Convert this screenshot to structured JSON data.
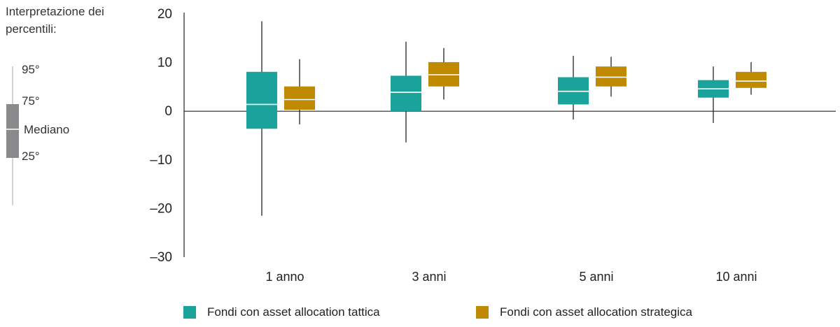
{
  "key": {
    "title": "Interpretazione dei percentili:",
    "labels": {
      "p95": "95°",
      "p75": "75°",
      "median": "Mediano",
      "p25": "25°"
    }
  },
  "legend": {
    "tactical": "Fondi con asset allocation tattica",
    "strategic": "Fondi con asset allocation strategica"
  },
  "colors": {
    "tactical": "#1aa39a",
    "strategic": "#c08a00",
    "key_box": "#8a8a8d",
    "axis": "#222222"
  },
  "chart_data": {
    "type": "box",
    "categories": [
      "1 anno",
      "3 anni",
      "5 anni",
      "10 anni"
    ],
    "ylim": [
      -30,
      20
    ],
    "yticks": [
      20,
      10,
      0,
      -10,
      -20,
      -30
    ],
    "ytick_labels": [
      "20",
      "10",
      "0",
      "–10",
      "–20",
      "–30"
    ],
    "series": [
      {
        "name": "Fondi con asset allocation tattica",
        "color": "#1aa39a",
        "boxes": [
          {
            "whisker_low": -21.5,
            "q1": -3.6,
            "median": 1.4,
            "q3": 8.1,
            "whisker_high": 18.5
          },
          {
            "whisker_low": -6.4,
            "q1": 0.0,
            "median": 3.9,
            "q3": 7.3,
            "whisker_high": 14.3
          },
          {
            "whisker_low": -1.7,
            "q1": 1.4,
            "median": 4.1,
            "q3": 7.0,
            "whisker_high": 11.4
          },
          {
            "whisker_low": -2.4,
            "q1": 2.8,
            "median": 4.6,
            "q3": 6.4,
            "whisker_high": 9.2
          }
        ]
      },
      {
        "name": "Fondi con asset allocation strategica",
        "color": "#c08a00",
        "boxes": [
          {
            "whisker_low": -2.7,
            "q1": 0.3,
            "median": 2.4,
            "q3": 5.1,
            "whisker_high": 10.7
          },
          {
            "whisker_low": 2.4,
            "q1": 5.1,
            "median": 7.5,
            "q3": 10.1,
            "whisker_high": 13.0
          },
          {
            "whisker_low": 3.0,
            "q1": 5.1,
            "median": 7.0,
            "q3": 9.2,
            "whisker_high": 11.2
          },
          {
            "whisker_low": 3.4,
            "q1": 4.8,
            "median": 6.2,
            "q3": 8.1,
            "whisker_high": 10.1
          }
        ]
      }
    ]
  }
}
